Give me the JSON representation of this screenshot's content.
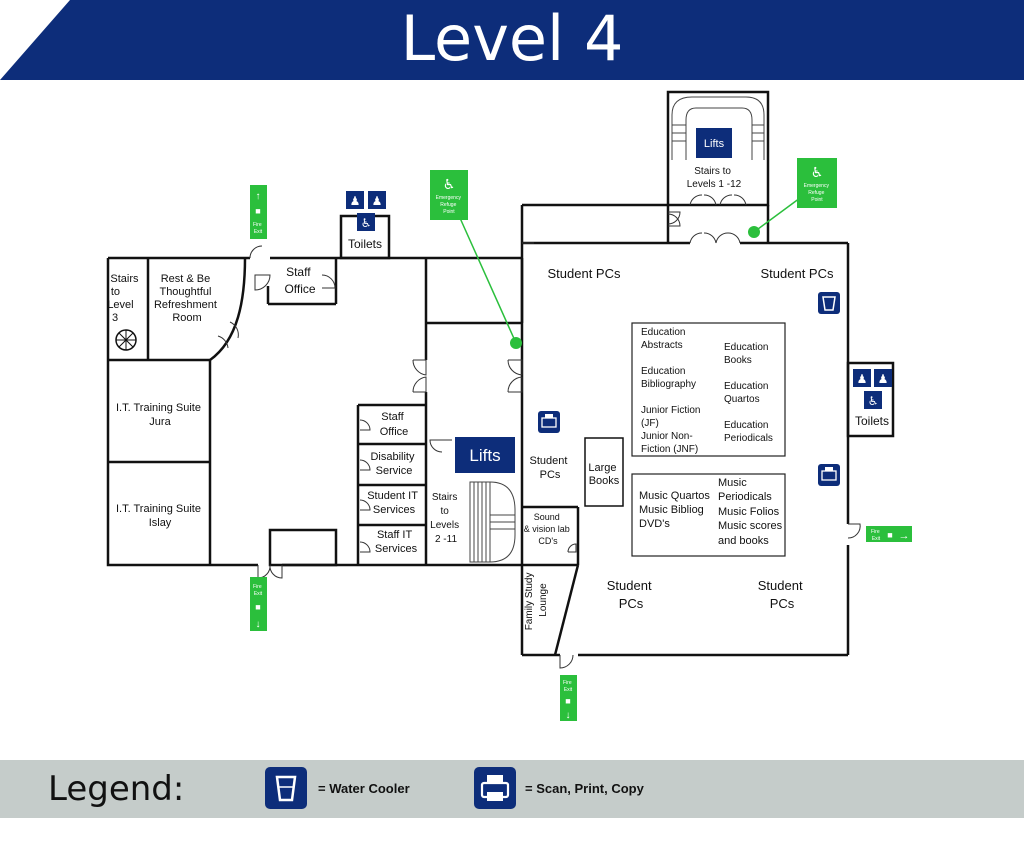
{
  "title": "Level 4",
  "colors": {
    "banner": "#0d2d7a",
    "icon_blue": "#0d2d7a",
    "exit_green": "#2bbf3c",
    "legend_bar": "#c5ccca"
  },
  "rooms": {
    "stairs_l3": [
      "Stairs",
      "to",
      "Level",
      "3"
    ],
    "refreshment": [
      "Rest & Be",
      "Thoughtful",
      "Refreshment",
      "Room"
    ],
    "staff_office_top": [
      "Staff",
      "Office"
    ],
    "toilets_top": "Toilets",
    "it_jura": [
      "I.T. Training Suite",
      "Jura"
    ],
    "it_islay": [
      "I.T. Training Suite",
      "Islay"
    ],
    "staff_office_mid": [
      "Staff",
      "Office"
    ],
    "disability": [
      "Disability",
      "Service"
    ],
    "student_it": [
      "Student IT",
      "Services"
    ],
    "staff_it": [
      "Staff  IT",
      "Services"
    ],
    "lifts_mid": "Lifts",
    "stairs_2_11": [
      "Stairs",
      "to",
      "Levels",
      "2 -11"
    ],
    "lifts_top": "Lifts",
    "stairs_1_12": [
      "Stairs to",
      "Levels 1 -12"
    ],
    "student_pcs_tl": "Student PCs",
    "student_pcs_tr": "Student PCs",
    "student_pcs_left": [
      "Student",
      "PCs"
    ],
    "large_books": [
      "Large",
      "Books"
    ],
    "sound_vision": [
      "Sound",
      "& vision lab",
      "CD's"
    ],
    "family_study": [
      "Family Study",
      "Lounge"
    ],
    "student_pcs_bl": [
      "Student",
      "PCs"
    ],
    "student_pcs_br": [
      "Student",
      "PCs"
    ],
    "toilets_right": "Toilets"
  },
  "shelves_education": {
    "left": [
      "Education",
      "Abstracts",
      "",
      "Education",
      "Bibliography",
      "",
      "Junior Fiction",
      "(JF)",
      "Junior Non-",
      "Fiction (JNF)"
    ],
    "right": [
      "Education",
      "Books",
      "",
      "Education",
      "Quartos",
      "",
      "Education",
      "Periodicals"
    ]
  },
  "shelves_music": {
    "left": [
      "Music Quartos",
      "Music Bibliog",
      "DVD's"
    ],
    "right": [
      "Music",
      "Periodicals",
      "Music Folios",
      "Music scores",
      "and books"
    ]
  },
  "signs": {
    "fire_exit": [
      "Fire",
      "Exit"
    ],
    "refuge": [
      "Emergency",
      "Refuge",
      "Point"
    ]
  },
  "legend": {
    "title": "Legend:",
    "water_cooler": "= Water Cooler",
    "scan_print": "= Scan, Print, Copy"
  }
}
